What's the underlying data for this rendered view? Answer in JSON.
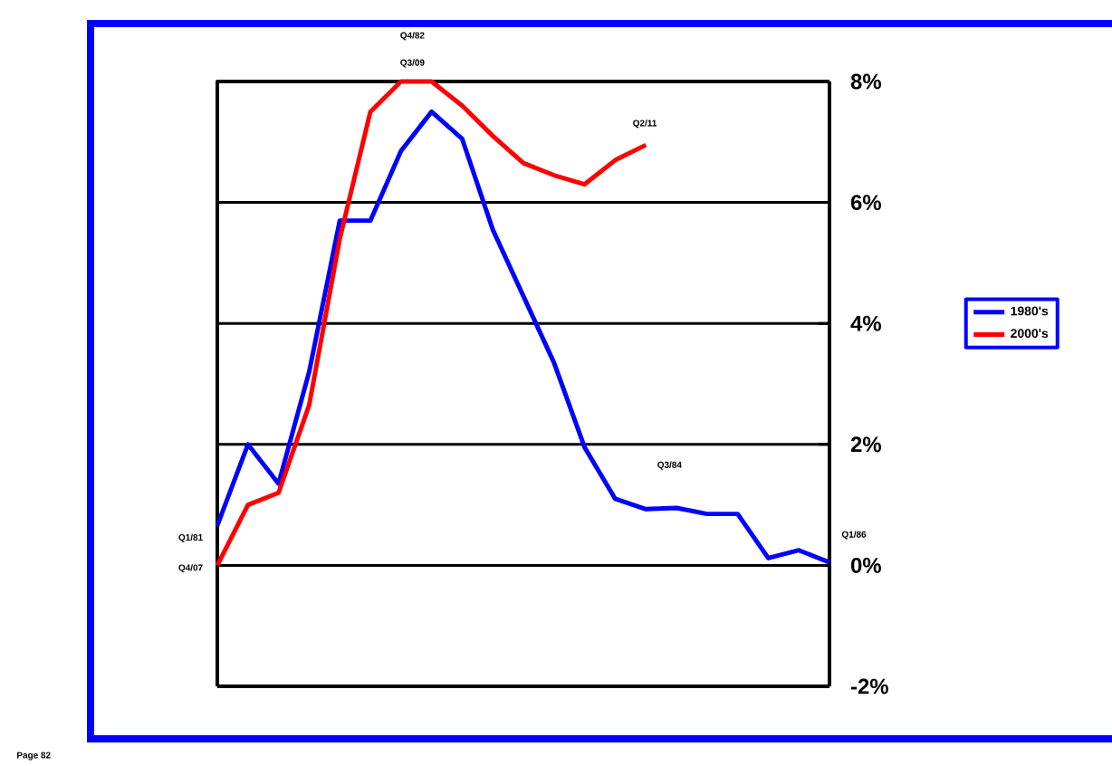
{
  "chart_data": {
    "type": "line",
    "categories": [
      null,
      null,
      null,
      null,
      null,
      null,
      null,
      null,
      null,
      null,
      null,
      null,
      null,
      null,
      null,
      null,
      null,
      null,
      null,
      null,
      null
    ],
    "series": [
      {
        "name": "1980's",
        "color": "#0000ff",
        "values": [
          0.66,
          2.0,
          1.35,
          3.2,
          5.7,
          5.7,
          6.85,
          7.5,
          7.05,
          5.55,
          4.45,
          3.35,
          1.95,
          1.1,
          0.93,
          0.95,
          0.85,
          0.85,
          0.12,
          0.25,
          0.05
        ]
      },
      {
        "name": "2000's",
        "color": "#ff0000",
        "values": [
          0,
          1.0,
          1.2,
          2.65,
          5.4,
          7.5,
          8.0,
          8.0,
          7.6,
          7.1,
          6.65,
          6.45,
          6.3,
          6.7,
          6.95,
          null,
          null,
          null,
          null,
          null,
          null
        ]
      }
    ],
    "ylim": [
      -2,
      8
    ],
    "yticks": [
      {
        "value": -2,
        "label": "-2%"
      },
      {
        "value": 0,
        "label": "0%"
      },
      {
        "value": 2,
        "label": "2%"
      },
      {
        "value": 4,
        "label": "4%"
      },
      {
        "value": 6,
        "label": "6%"
      },
      {
        "value": 8,
        "label": "8%"
      }
    ],
    "grid": "y",
    "legend": "right",
    "marker": "none",
    "line_style": "solid",
    "annotations": [
      "Q1/81",
      "Q4/07",
      "Q4/82",
      "Q3/09",
      "Q2/11",
      "Q3/84",
      "Q1/86",
      "Page 82"
    ]
  }
}
